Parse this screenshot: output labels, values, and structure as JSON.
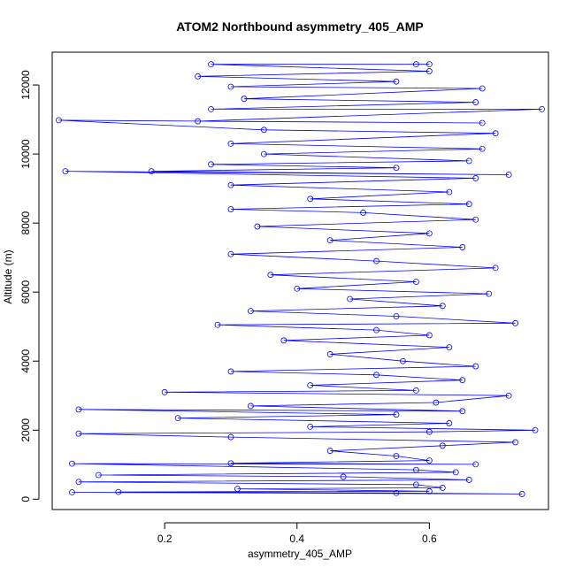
{
  "chart_data": {
    "type": "scatter",
    "title": "ATOM2 Northbound asymmetry_405_AMP",
    "xlabel": "asymmetry_405_AMP",
    "ylabel": "Altitude (m)",
    "xlim": [
      0.03,
      0.78
    ],
    "ylim": [
      -300,
      12950
    ],
    "x_ticks": [
      0.2,
      0.4,
      0.6
    ],
    "x_tick_labels": [
      "0.2",
      "0.4",
      "0.6"
    ],
    "y_ticks": [
      0,
      2000,
      4000,
      6000,
      8000,
      10000,
      12000
    ],
    "y_tick_labels": [
      "0",
      "2000",
      "4000",
      "6000",
      "8000",
      "10000",
      "12000"
    ],
    "grid": false,
    "legend": "none",
    "point_style": "open-circle-with-connecting-lines",
    "series": [
      {
        "color": "#0000ff",
        "points": [
          {
            "x": 0.06,
            "y": 200
          },
          {
            "x": 0.74,
            "y": 150
          },
          {
            "x": 0.55,
            "y": 180
          },
          {
            "x": 0.13,
            "y": 210
          },
          {
            "x": 0.6,
            "y": 230
          },
          {
            "x": 0.31,
            "y": 300
          },
          {
            "x": 0.62,
            "y": 330
          },
          {
            "x": 0.58,
            "y": 420
          },
          {
            "x": 0.07,
            "y": 500
          },
          {
            "x": 0.66,
            "y": 560
          },
          {
            "x": 0.47,
            "y": 650
          },
          {
            "x": 0.1,
            "y": 700
          },
          {
            "x": 0.64,
            "y": 780
          },
          {
            "x": 0.58,
            "y": 850
          },
          {
            "x": 0.06,
            "y": 1030
          },
          {
            "x": 0.67,
            "y": 1010
          },
          {
            "x": 0.3,
            "y": 1040
          },
          {
            "x": 0.6,
            "y": 1120
          },
          {
            "x": 0.55,
            "y": 1250
          },
          {
            "x": 0.45,
            "y": 1400
          },
          {
            "x": 0.62,
            "y": 1550
          },
          {
            "x": 0.73,
            "y": 1650
          },
          {
            "x": 0.3,
            "y": 1800
          },
          {
            "x": 0.07,
            "y": 1900
          },
          {
            "x": 0.6,
            "y": 1950
          },
          {
            "x": 0.76,
            "y": 2000
          },
          {
            "x": 0.42,
            "y": 2100
          },
          {
            "x": 0.63,
            "y": 2200
          },
          {
            "x": 0.22,
            "y": 2350
          },
          {
            "x": 0.55,
            "y": 2450
          },
          {
            "x": 0.07,
            "y": 2600
          },
          {
            "x": 0.65,
            "y": 2550
          },
          {
            "x": 0.33,
            "y": 2700
          },
          {
            "x": 0.61,
            "y": 2800
          },
          {
            "x": 0.72,
            "y": 3000
          },
          {
            "x": 0.2,
            "y": 3100
          },
          {
            "x": 0.58,
            "y": 3150
          },
          {
            "x": 0.42,
            "y": 3300
          },
          {
            "x": 0.65,
            "y": 3450
          },
          {
            "x": 0.52,
            "y": 3600
          },
          {
            "x": 0.3,
            "y": 3700
          },
          {
            "x": 0.67,
            "y": 3850
          },
          {
            "x": 0.56,
            "y": 4000
          },
          {
            "x": 0.45,
            "y": 4200
          },
          {
            "x": 0.63,
            "y": 4400
          },
          {
            "x": 0.38,
            "y": 4600
          },
          {
            "x": 0.6,
            "y": 4750
          },
          {
            "x": 0.52,
            "y": 4900
          },
          {
            "x": 0.28,
            "y": 5050
          },
          {
            "x": 0.73,
            "y": 5100
          },
          {
            "x": 0.55,
            "y": 5300
          },
          {
            "x": 0.33,
            "y": 5450
          },
          {
            "x": 0.62,
            "y": 5600
          },
          {
            "x": 0.48,
            "y": 5800
          },
          {
            "x": 0.69,
            "y": 5950
          },
          {
            "x": 0.4,
            "y": 6100
          },
          {
            "x": 0.58,
            "y": 6300
          },
          {
            "x": 0.36,
            "y": 6500
          },
          {
            "x": 0.7,
            "y": 6700
          },
          {
            "x": 0.52,
            "y": 6900
          },
          {
            "x": 0.3,
            "y": 7100
          },
          {
            "x": 0.65,
            "y": 7300
          },
          {
            "x": 0.45,
            "y": 7500
          },
          {
            "x": 0.6,
            "y": 7700
          },
          {
            "x": 0.34,
            "y": 7900
          },
          {
            "x": 0.67,
            "y": 8100
          },
          {
            "x": 0.5,
            "y": 8300
          },
          {
            "x": 0.3,
            "y": 8400
          },
          {
            "x": 0.66,
            "y": 8550
          },
          {
            "x": 0.42,
            "y": 8700
          },
          {
            "x": 0.63,
            "y": 8900
          },
          {
            "x": 0.3,
            "y": 9100
          },
          {
            "x": 0.67,
            "y": 9300
          },
          {
            "x": 0.05,
            "y": 9500
          },
          {
            "x": 0.72,
            "y": 9400
          },
          {
            "x": 0.18,
            "y": 9500
          },
          {
            "x": 0.55,
            "y": 9600
          },
          {
            "x": 0.27,
            "y": 9700
          },
          {
            "x": 0.66,
            "y": 9800
          },
          {
            "x": 0.35,
            "y": 10000
          },
          {
            "x": 0.68,
            "y": 10150
          },
          {
            "x": 0.3,
            "y": 10300
          },
          {
            "x": 0.7,
            "y": 10600
          },
          {
            "x": 0.35,
            "y": 10700
          },
          {
            "x": 0.04,
            "y": 10980
          },
          {
            "x": 0.68,
            "y": 10900
          },
          {
            "x": 0.25,
            "y": 10950
          },
          {
            "x": 0.77,
            "y": 11300
          },
          {
            "x": 0.27,
            "y": 11300
          },
          {
            "x": 0.67,
            "y": 11500
          },
          {
            "x": 0.32,
            "y": 11600
          },
          {
            "x": 0.68,
            "y": 11900
          },
          {
            "x": 0.3,
            "y": 11950
          },
          {
            "x": 0.55,
            "y": 12100
          },
          {
            "x": 0.25,
            "y": 12250
          },
          {
            "x": 0.6,
            "y": 12400
          },
          {
            "x": 0.27,
            "y": 12600
          },
          {
            "x": 0.58,
            "y": 12600
          },
          {
            "x": 0.6,
            "y": 12600
          }
        ]
      }
    ]
  }
}
